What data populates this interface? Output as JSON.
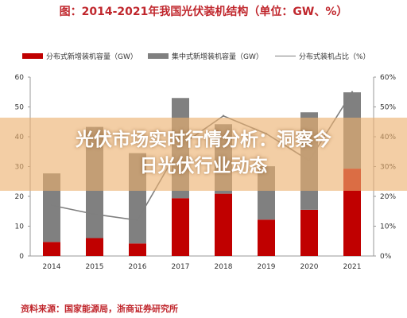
{
  "title": "图：2014-2021年我国光伏装机结构（单位：GW、%）",
  "legend": {
    "distributed": "分布式新增装机容量（GW）",
    "centralized": "集中式新增装机容量（GW）",
    "share": "分布式装机占比（%）"
  },
  "banner": {
    "line1": "光伏市场实时行情分析：洞察今",
    "line2": "日光伏行业动态"
  },
  "source": "资料来源：国家能源局，浙商证券研究所",
  "colors": {
    "distributed": "#c00000",
    "centralized": "#808080",
    "share_line": "#7f7f7f"
  },
  "chart_data": {
    "type": "bar",
    "stacked": true,
    "categories": [
      "2014",
      "2015",
      "2016",
      "2017",
      "2018",
      "2019",
      "2020",
      "2021"
    ],
    "series": [
      {
        "name": "分布式新增装机容量（GW）",
        "values": [
          4.7,
          6.0,
          4.2,
          19.4,
          20.9,
          12.2,
          15.5,
          29.3
        ]
      },
      {
        "name": "集中式新增装机容量（GW）",
        "values": [
          23.0,
          37.3,
          30.3,
          33.6,
          23.3,
          17.9,
          32.7,
          25.6
        ]
      }
    ],
    "line_series": {
      "name": "分布式装机占比（%）",
      "values": [
        17,
        14,
        12,
        37,
        47,
        41,
        32,
        55
      ]
    },
    "y_left": {
      "min": 0,
      "max": 60,
      "ticks": [
        "0",
        "10",
        "20",
        "30",
        "40",
        "50",
        "60"
      ]
    },
    "y_right": {
      "min": 0,
      "max": 60,
      "ticks": [
        "0%",
        "10%",
        "20%",
        "30%",
        "40%",
        "50%",
        "60%"
      ]
    },
    "grid": false,
    "legend_position": "top"
  }
}
